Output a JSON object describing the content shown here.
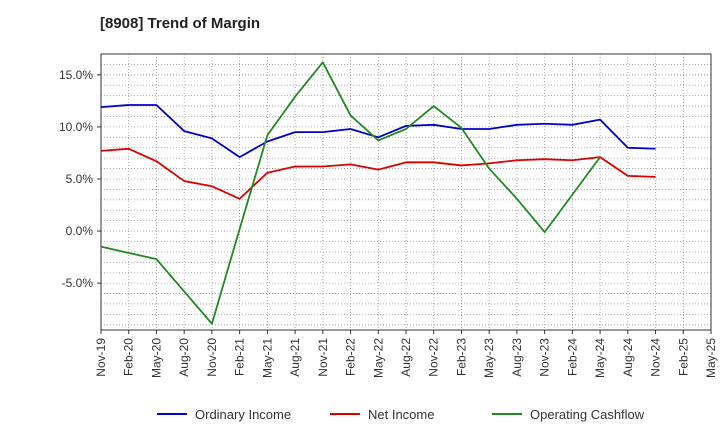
{
  "chart_data": {
    "type": "line",
    "title": "[8908]  Trend of Margin",
    "xlabel": "",
    "ylabel": "",
    "x": [
      "Nov-19",
      "Feb-20",
      "May-20",
      "Aug-20",
      "Nov-20",
      "Feb-21",
      "May-21",
      "Aug-21",
      "Nov-21",
      "Feb-22",
      "May-22",
      "Aug-22",
      "Nov-22",
      "Feb-23",
      "May-23",
      "Aug-23",
      "Nov-23",
      "Feb-24",
      "May-24",
      "Aug-24",
      "Nov-24",
      "Feb-25",
      "May-25"
    ],
    "yticks": [
      -5.0,
      0.0,
      5.0,
      10.0,
      15.0
    ],
    "ytick_labels": [
      "-5.0%",
      "0.0%",
      "5.0%",
      "10.0%",
      "15.0%"
    ],
    "ylim": [
      -9.5,
      17.0
    ],
    "grid": true,
    "legend_position": "bottom",
    "series": [
      {
        "name": "Ordinary Income",
        "color": "#0000cc",
        "values": [
          11.9,
          12.1,
          12.1,
          9.6,
          8.9,
          7.1,
          8.6,
          9.5,
          9.5,
          9.8,
          9.0,
          10.1,
          10.2,
          9.8,
          9.8,
          10.2,
          10.3,
          10.2,
          10.7,
          8.0,
          7.9,
          null,
          null
        ]
      },
      {
        "name": "Net Income",
        "color": "#dd0000",
        "values": [
          7.7,
          7.9,
          6.7,
          4.8,
          4.3,
          3.1,
          5.6,
          6.2,
          6.2,
          6.4,
          5.9,
          6.6,
          6.6,
          6.3,
          6.5,
          6.8,
          6.9,
          6.8,
          7.1,
          5.3,
          5.2,
          null,
          null
        ]
      },
      {
        "name": "Operating Cashflow",
        "color": "#228822",
        "values": [
          -1.5,
          -2.1,
          -2.7,
          -5.8,
          -8.9,
          0.2,
          9.2,
          12.9,
          16.2,
          11.1,
          8.7,
          9.8,
          12.0,
          9.9,
          6.0,
          3.1,
          -0.1,
          3.5,
          7.1,
          null,
          null,
          null,
          null
        ]
      }
    ]
  }
}
